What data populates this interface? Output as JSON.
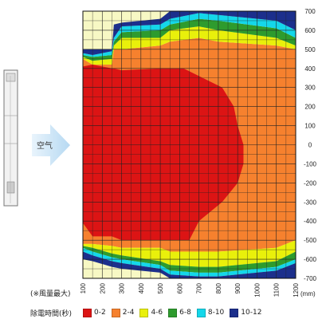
{
  "side": {
    "air_label": "空气",
    "note": "(※風量最大)"
  },
  "legend": {
    "title": "除電時間(秒)",
    "items": [
      {
        "label": "0-2",
        "color": "#dc1414"
      },
      {
        "label": "2-4",
        "color": "#f6812e"
      },
      {
        "label": "4-6",
        "color": "#e9f00b"
      },
      {
        "label": "6-8",
        "color": "#2e9b2e"
      },
      {
        "label": "8-10",
        "color": "#14d7ea"
      },
      {
        "label": "10-12",
        "color": "#1c2f8c"
      }
    ]
  },
  "chart_data": {
    "type": "heatmap",
    "x_unit": "(mm)",
    "xlim": [
      100,
      1200
    ],
    "ylim": [
      -700,
      700
    ],
    "x_ticks": [
      100,
      200,
      300,
      400,
      500,
      600,
      700,
      800,
      900,
      1000,
      1100,
      1200
    ],
    "y_ticks": [
      700,
      600,
      500,
      400,
      300,
      200,
      100,
      0,
      -100,
      -200,
      -300,
      -400,
      -500,
      -600,
      -700
    ],
    "background_color": "#f7f8c4",
    "zone_boundaries_top": {
      "x": [
        100,
        150,
        250,
        260,
        300,
        500,
        550,
        700,
        800,
        1100,
        1200
      ],
      "10-12": [
        500,
        500,
        500,
        630,
        640,
        660,
        700,
        700,
        700,
        700,
        700
      ],
      "8-10": [
        480,
        470,
        490,
        560,
        620,
        630,
        660,
        690,
        680,
        650,
        600
      ],
      "6-8": [
        470,
        460,
        470,
        540,
        590,
        600,
        630,
        660,
        650,
        610,
        560
      ],
      "4-6": [
        460,
        440,
        450,
        520,
        560,
        560,
        600,
        620,
        600,
        560,
        520
      ],
      "2-4": [
        450,
        420,
        420,
        500,
        500,
        520,
        540,
        560,
        540,
        520,
        500
      ],
      "0-2": [
        410,
        420,
        400,
        400,
        390,
        400,
        400,
        400,
        400,
        400,
        400
      ]
    },
    "zone_boundaries_bottom": {
      "x": [
        100,
        150,
        250,
        300,
        500,
        550,
        700,
        800,
        1100,
        1200
      ],
      "10-12": [
        -600,
        -610,
        -640,
        -650,
        -670,
        -700,
        -700,
        -700,
        -700,
        -700
      ],
      "8-10": [
        -560,
        -580,
        -610,
        -620,
        -650,
        -680,
        -690,
        -690,
        -660,
        -620
      ],
      "6-8": [
        -540,
        -560,
        -590,
        -600,
        -630,
        -660,
        -670,
        -670,
        -640,
        -600
      ],
      "4-6": [
        -530,
        -540,
        -570,
        -580,
        -610,
        -630,
        -640,
        -640,
        -610,
        -560
      ],
      "2-4": [
        -520,
        -520,
        -530,
        -540,
        -540,
        -560,
        -560,
        -560,
        -540,
        -500
      ],
      "0-2": [
        -410,
        -480,
        -480,
        -500,
        -500,
        -500,
        -480,
        -470,
        -460,
        -420
      ]
    },
    "red_core_right_edge": {
      "y": [
        400,
        300,
        200,
        100,
        0,
        -100,
        -200,
        -300,
        -400,
        -500
      ],
      "x": [
        620,
        820,
        880,
        900,
        930,
        930,
        900,
        820,
        700,
        650
      ]
    },
    "orange_right_edge_x": 1200
  }
}
